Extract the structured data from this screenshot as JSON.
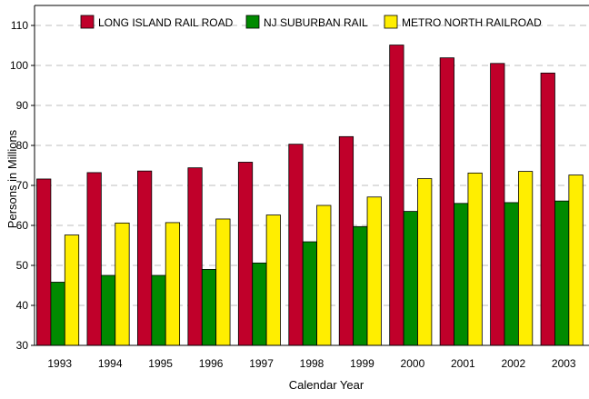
{
  "chart_data": {
    "type": "bar",
    "title": "",
    "xlabel": "Calendar Year",
    "ylabel": "Persons in Millions",
    "ylim": [
      30,
      115
    ],
    "yticks": [
      30,
      40,
      50,
      60,
      70,
      80,
      90,
      100,
      110
    ],
    "grid": "horizontal dashed",
    "legend_position": "top",
    "categories": [
      "1993",
      "1994",
      "1995",
      "1996",
      "1997",
      "1998",
      "1999",
      "2000",
      "2001",
      "2002",
      "2003"
    ],
    "series": [
      {
        "name": "LONG ISLAND RAIL ROAD",
        "color": "#c0002a",
        "values": [
          71.6,
          73.2,
          73.6,
          74.4,
          75.8,
          80.3,
          82.2,
          105.1,
          101.9,
          100.5,
          98.1
        ]
      },
      {
        "name": "NJ SUBURBAN RAIL",
        "color": "#008a00",
        "values": [
          45.8,
          47.5,
          47.5,
          49.0,
          50.6,
          55.9,
          59.7,
          63.5,
          65.5,
          65.7,
          66.1
        ]
      },
      {
        "name": "METRO NORTH RAILROAD",
        "color": "#ffee00",
        "values": [
          57.6,
          60.6,
          60.7,
          61.6,
          62.6,
          65.0,
          67.1,
          71.7,
          73.1,
          73.5,
          72.6
        ]
      }
    ]
  }
}
